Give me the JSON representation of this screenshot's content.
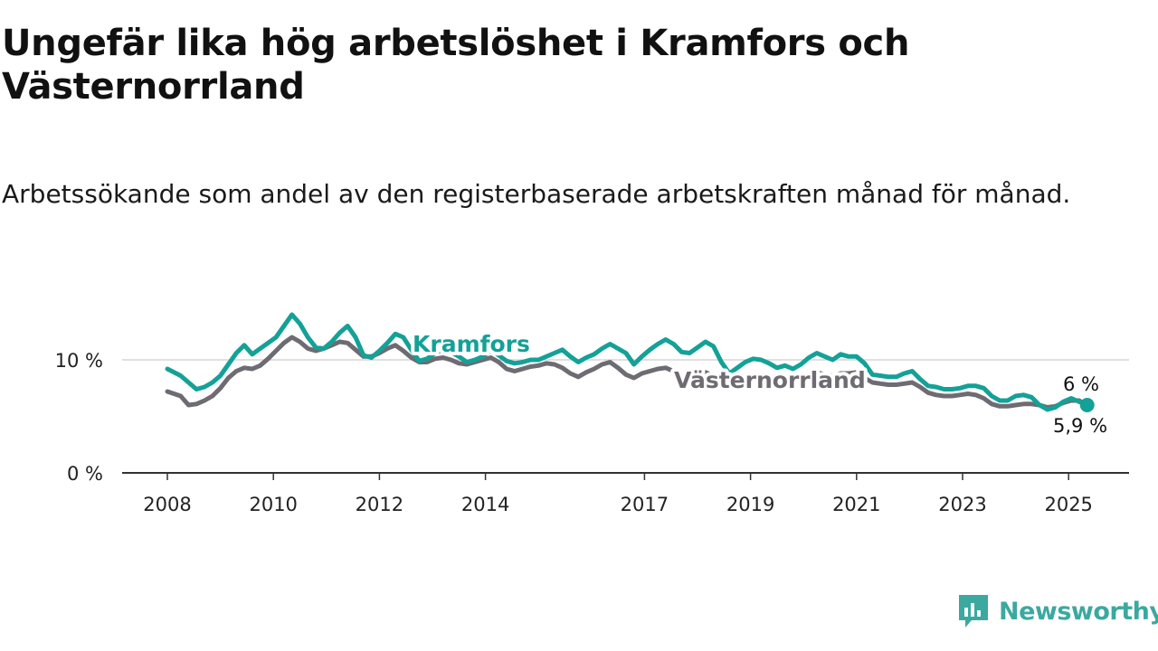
{
  "title": "Ungefär lika hög arbetslöshet i Kramfors och Västernorrland",
  "subtitle": "Arbetssökande som andel av den registerbaserade arbetskraften månad för månad.",
  "brand": {
    "name": "Newsworthy"
  },
  "colors": {
    "kramfors": "#14a197",
    "vasternorrland": "#6e6b72",
    "grid": "#d6d6d6",
    "axis": "#333333"
  },
  "chart_data": {
    "type": "line",
    "title": "Ungefär lika hög arbetslöshet i Kramfors och Västernorrland",
    "subtitle": "Arbetssökande som andel av den registerbaserade arbetskraften månad för månad.",
    "xlabel": "",
    "ylabel": "",
    "xlim": [
      2008.0,
      2025.75
    ],
    "ylim": [
      0,
      14.5
    ],
    "x_ticks": [
      {
        "value": 2008,
        "label": "2008"
      },
      {
        "value": 2010,
        "label": "2010"
      },
      {
        "value": 2012,
        "label": "2012"
      },
      {
        "value": 2014,
        "label": "2014"
      },
      {
        "value": 2017,
        "label": "2017"
      },
      {
        "value": 2019,
        "label": "2019"
      },
      {
        "value": 2021,
        "label": "2021"
      },
      {
        "value": 2023,
        "label": "2023"
      },
      {
        "value": 2025,
        "label": "2025"
      }
    ],
    "y_ticks": [
      {
        "value": 0,
        "label": "0 %"
      },
      {
        "value": 10,
        "label": "10 %"
      }
    ],
    "grid": "horizontal",
    "legend": "inline labels",
    "end_labels": [
      {
        "series": "Kramfors",
        "label": "6 %"
      },
      {
        "series": "Västernorrland",
        "label": "5,9 %"
      }
    ],
    "series": [
      {
        "name": "Kramfors",
        "x": [
          2008.0,
          2008.25,
          2008.4,
          2008.55,
          2008.7,
          2008.85,
          2009.0,
          2009.15,
          2009.3,
          2009.45,
          2009.6,
          2009.75,
          2009.9,
          2010.05,
          2010.2,
          2010.35,
          2010.5,
          2010.65,
          2010.8,
          2010.95,
          2011.1,
          2011.25,
          2011.4,
          2011.55,
          2011.7,
          2011.85,
          2012.0,
          2012.15,
          2012.3,
          2012.45,
          2012.6,
          2012.75,
          2012.9,
          2013.05,
          2013.2,
          2013.35,
          2013.5,
          2013.65,
          2013.8,
          2013.95,
          2014.1,
          2014.25,
          2014.4,
          2014.55,
          2014.7,
          2014.85,
          2015.0,
          2015.15,
          2015.3,
          2015.45,
          2015.6,
          2015.75,
          2015.9,
          2016.05,
          2016.2,
          2016.35,
          2016.5,
          2016.65,
          2016.8,
          2016.95,
          2017.1,
          2017.25,
          2017.4,
          2017.55,
          2017.7,
          2017.85,
          2018.0,
          2018.15,
          2018.3,
          2018.45,
          2018.6,
          2018.75,
          2018.9,
          2019.05,
          2019.2,
          2019.35,
          2019.5,
          2019.65,
          2019.8,
          2019.95,
          2020.1,
          2020.25,
          2020.4,
          2020.55,
          2020.7,
          2020.85,
          2021.0,
          2021.15,
          2021.3,
          2021.45,
          2021.6,
          2021.75,
          2021.9,
          2022.05,
          2022.2,
          2022.35,
          2022.5,
          2022.65,
          2022.8,
          2022.95,
          2023.1,
          2023.25,
          2023.4,
          2023.55,
          2023.7,
          2023.85,
          2024.0,
          2024.15,
          2024.3,
          2024.45,
          2024.6,
          2024.75,
          2024.9,
          2025.05,
          2025.2,
          2025.35
        ],
        "values": [
          9.2,
          8.6,
          8.0,
          7.4,
          7.6,
          8.0,
          8.6,
          9.6,
          10.6,
          11.3,
          10.5,
          11.0,
          11.5,
          12.0,
          13.0,
          14.0,
          13.2,
          12.0,
          11.1,
          11.0,
          11.6,
          12.4,
          13.0,
          12.0,
          10.4,
          10.2,
          10.8,
          11.5,
          12.3,
          12.0,
          10.9,
          9.9,
          10.1,
          10.6,
          10.9,
          10.7,
          10.3,
          9.8,
          10.0,
          10.3,
          10.9,
          10.4,
          9.9,
          9.7,
          9.8,
          10.0,
          10.0,
          10.3,
          10.6,
          10.9,
          10.3,
          9.8,
          10.2,
          10.5,
          11.0,
          11.4,
          11.0,
          10.6,
          9.6,
          10.3,
          10.9,
          11.4,
          11.8,
          11.4,
          10.7,
          10.6,
          11.1,
          11.6,
          11.2,
          9.8,
          8.8,
          9.3,
          9.8,
          10.1,
          10.0,
          9.7,
          9.3,
          9.5,
          9.2,
          9.6,
          10.2,
          10.6,
          10.3,
          10.0,
          10.5,
          10.3,
          10.3,
          9.7,
          8.7,
          8.6,
          8.5,
          8.5,
          8.8,
          9.0,
          8.3,
          7.7,
          7.6,
          7.4,
          7.4,
          7.5,
          7.7,
          7.7,
          7.5,
          6.8,
          6.4,
          6.4,
          6.8,
          6.9,
          6.7,
          6.0,
          5.6,
          5.8,
          6.3,
          6.6,
          6.3,
          6.0
        ]
      },
      {
        "name": "Västernorrland",
        "x": [
          2008.0,
          2008.25,
          2008.4,
          2008.55,
          2008.7,
          2008.85,
          2009.0,
          2009.15,
          2009.3,
          2009.45,
          2009.6,
          2009.75,
          2009.9,
          2010.05,
          2010.2,
          2010.35,
          2010.5,
          2010.65,
          2010.8,
          2010.95,
          2011.1,
          2011.25,
          2011.4,
          2011.55,
          2011.7,
          2011.85,
          2012.0,
          2012.15,
          2012.3,
          2012.45,
          2012.6,
          2012.75,
          2012.9,
          2013.05,
          2013.2,
          2013.35,
          2013.5,
          2013.65,
          2013.8,
          2013.95,
          2014.1,
          2014.25,
          2014.4,
          2014.55,
          2014.7,
          2014.85,
          2015.0,
          2015.15,
          2015.3,
          2015.45,
          2015.6,
          2015.75,
          2015.9,
          2016.05,
          2016.2,
          2016.35,
          2016.5,
          2016.65,
          2016.8,
          2016.95,
          2017.1,
          2017.25,
          2017.4,
          2017.55,
          2017.7,
          2017.85,
          2018.0,
          2018.15,
          2018.3,
          2018.45,
          2018.6,
          2018.75,
          2018.9,
          2019.05,
          2019.2,
          2019.35,
          2019.5,
          2019.65,
          2019.8,
          2019.95,
          2020.1,
          2020.25,
          2020.4,
          2020.55,
          2020.7,
          2020.85,
          2021.0,
          2021.15,
          2021.3,
          2021.45,
          2021.6,
          2021.75,
          2021.9,
          2022.05,
          2022.2,
          2022.35,
          2022.5,
          2022.65,
          2022.8,
          2022.95,
          2023.1,
          2023.25,
          2023.4,
          2023.55,
          2023.7,
          2023.85,
          2024.0,
          2024.15,
          2024.3,
          2024.45,
          2024.6,
          2024.75,
          2024.9,
          2025.05,
          2025.2,
          2025.35
        ],
        "values": [
          7.2,
          6.8,
          6.0,
          6.1,
          6.4,
          6.8,
          7.5,
          8.4,
          9.0,
          9.3,
          9.2,
          9.5,
          10.1,
          10.8,
          11.5,
          12.0,
          11.6,
          11.0,
          10.8,
          11.0,
          11.3,
          11.6,
          11.5,
          10.9,
          10.3,
          10.3,
          10.6,
          11.0,
          11.3,
          10.8,
          10.2,
          9.8,
          9.8,
          10.1,
          10.2,
          10.0,
          9.7,
          9.6,
          9.8,
          10.0,
          10.2,
          9.8,
          9.2,
          9.0,
          9.2,
          9.4,
          9.5,
          9.7,
          9.6,
          9.3,
          8.8,
          8.5,
          8.9,
          9.2,
          9.6,
          9.8,
          9.3,
          8.7,
          8.4,
          8.8,
          9.0,
          9.2,
          9.3,
          9.0,
          8.6,
          8.5,
          8.7,
          8.9,
          8.6,
          8.2,
          8.0,
          8.3,
          8.5,
          8.5,
          8.5,
          8.4,
          8.3,
          8.4,
          8.3,
          8.4,
          8.7,
          8.9,
          8.7,
          8.6,
          8.8,
          8.8,
          8.9,
          8.4,
          8.0,
          7.9,
          7.8,
          7.8,
          7.9,
          8.0,
          7.6,
          7.1,
          6.9,
          6.8,
          6.8,
          6.9,
          7.0,
          6.9,
          6.6,
          6.1,
          5.9,
          5.9,
          6.0,
          6.1,
          6.1,
          6.0,
          5.8,
          5.9,
          6.2,
          6.4,
          6.4,
          5.9
        ]
      }
    ]
  }
}
